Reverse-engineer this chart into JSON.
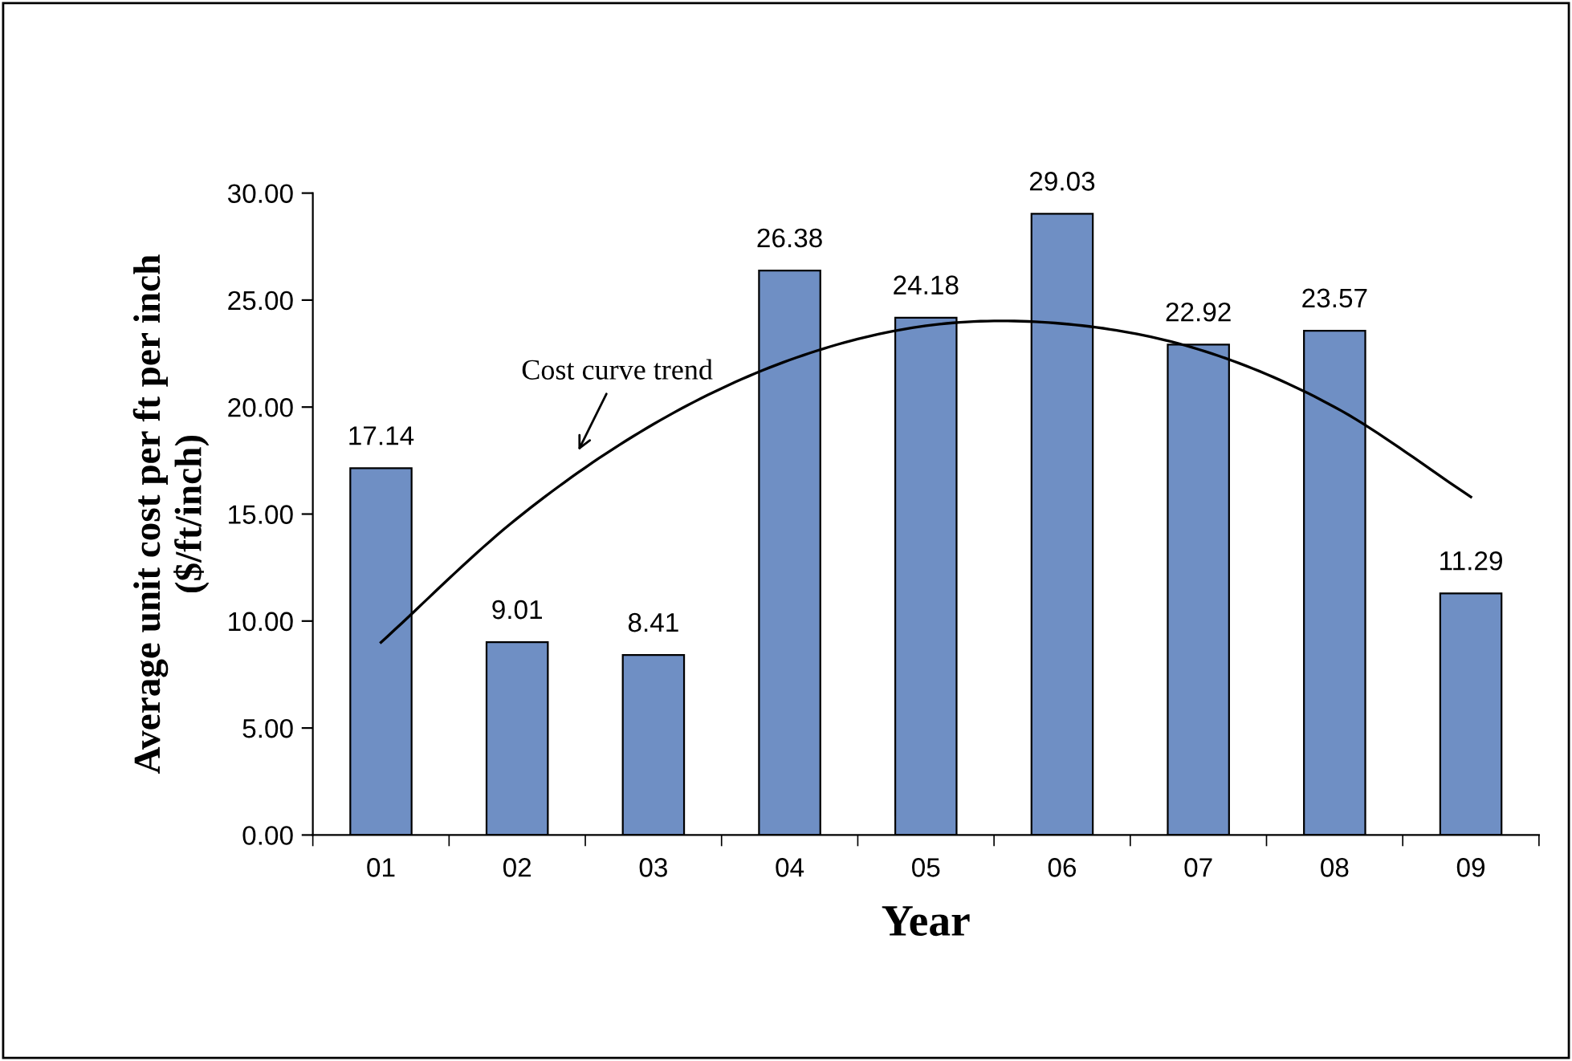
{
  "chart_data": {
    "type": "bar",
    "xlabel": "Year",
    "ylabel": "Average unit cost per ft per inch\n($/ft/inch)",
    "categories": [
      "01",
      "02",
      "03",
      "04",
      "05",
      "06",
      "07",
      "08",
      "09"
    ],
    "series": [
      {
        "color": "#6f8fc4",
        "values": [
          17.14,
          9.01,
          8.41,
          26.38,
          24.18,
          29.03,
          22.92,
          23.57,
          11.29
        ],
        "value_labels": [
          "17.14",
          "9.01",
          "8.41",
          "26.38",
          "24.18",
          "29.03",
          "22.92",
          "23.57",
          "11.29"
        ]
      },
      {
        "type": "line",
        "color": "#000000",
        "x": [
          "01",
          "02",
          "03",
          "04",
          "05",
          "06",
          "07",
          "08",
          "09"
        ],
        "values": [
          9.0,
          14.8,
          19.2,
          22.2,
          23.8,
          23.9,
          22.7,
          20.0,
          15.8
        ]
      }
    ],
    "ylim": [
      0,
      30
    ],
    "yticks": [
      {
        "value": 0,
        "label": "0.00"
      },
      {
        "value": 5,
        "label": "5.00"
      },
      {
        "value": 10,
        "label": "10.00"
      },
      {
        "value": 15,
        "label": "15.00"
      },
      {
        "value": 20,
        "label": "20.00"
      },
      {
        "value": 25,
        "label": "25.00"
      },
      {
        "value": 30,
        "label": "30.00"
      }
    ],
    "annotations": [
      "Cost curve trend"
    ],
    "grid": false,
    "legend": false
  }
}
